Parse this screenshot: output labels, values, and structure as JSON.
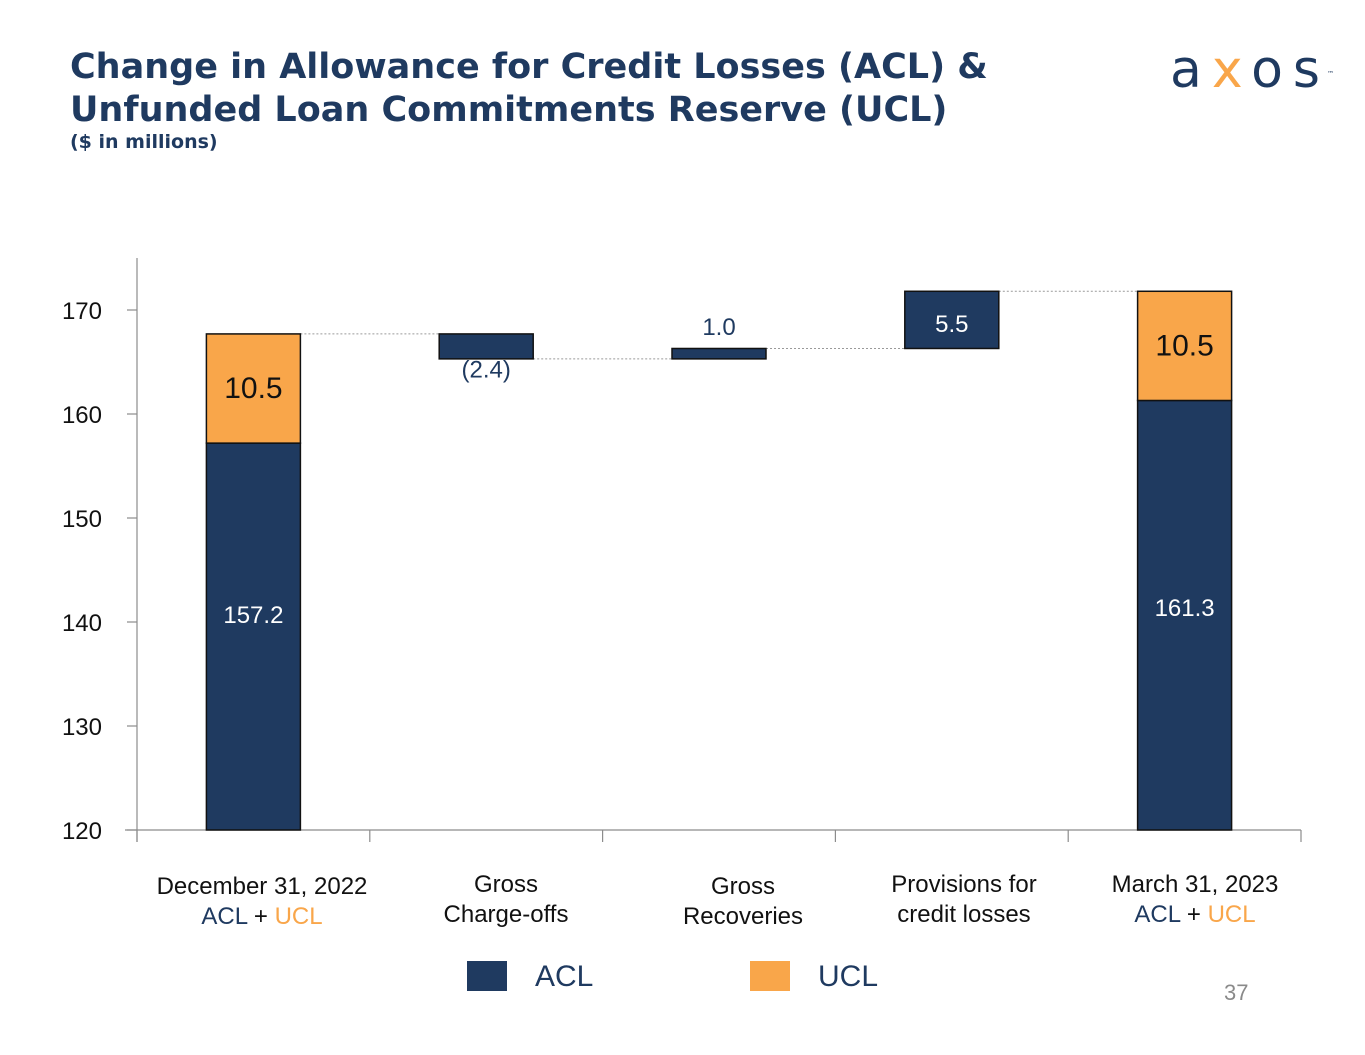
{
  "header": {
    "title_line1": "Change in Allowance for Credit Losses (ACL) &",
    "title_line2": "Unfunded Loan Commitments Reserve (UCL)",
    "subtitle": "($ in millions)"
  },
  "logo": {
    "prefix": "a",
    "x": "x",
    "suffix": "os",
    "tm": "™"
  },
  "chart_data": {
    "type": "bar",
    "subtype": "waterfall",
    "y_ticks": [
      120,
      130,
      140,
      150,
      160,
      170
    ],
    "ylim": [
      120,
      175
    ],
    "categories": [
      {
        "line1": "December 31, 2022",
        "acl": "ACL",
        "plus": " + ",
        "ucl": "UCL"
      },
      {
        "line1": "Gross",
        "line2": "Charge-offs"
      },
      {
        "line1": "Gross",
        "line2": "Recoveries"
      },
      {
        "line1": "Provisions for",
        "line2": "credit losses"
      },
      {
        "line1": "March 31, 2023",
        "acl": "ACL",
        "plus": " + ",
        "ucl": "UCL"
      }
    ],
    "bars": [
      {
        "name": "dec-acl",
        "cat": 0,
        "series": "ACL",
        "base": 120,
        "top": 157.2,
        "label": "157.2",
        "label_pos": "inside",
        "label_y": 140.5
      },
      {
        "name": "dec-ucl",
        "cat": 0,
        "series": "UCL",
        "base": 157.2,
        "top": 167.7,
        "label": "10.5",
        "label_pos": "inside",
        "label_y": 162.3
      },
      {
        "name": "charge-offs",
        "cat": 1,
        "series": "ACL",
        "base": 165.3,
        "top": 167.7,
        "label": "(2.4)",
        "label_pos": "below",
        "label_y": 164.1
      },
      {
        "name": "recoveries",
        "cat": 2,
        "series": "ACL",
        "base": 165.3,
        "top": 166.3,
        "label": "1.0",
        "label_pos": "above",
        "label_y": 168.2
      },
      {
        "name": "provisions",
        "cat": 3,
        "series": "ACL",
        "base": 166.3,
        "top": 171.8,
        "label": "5.5",
        "label_pos": "inside",
        "label_y": 168.5
      },
      {
        "name": "mar-acl",
        "cat": 4,
        "series": "ACL",
        "base": 120,
        "top": 161.3,
        "label": "161.3",
        "label_pos": "inside",
        "label_y": 141.2
      },
      {
        "name": "mar-ucl",
        "cat": 4,
        "series": "UCL",
        "base": 161.3,
        "top": 171.8,
        "label": "10.5",
        "label_pos": "inside",
        "label_y": 166.4
      }
    ],
    "connectors": [
      {
        "from_cat": 0,
        "to_cat": 1,
        "value": 167.7
      },
      {
        "from_cat": 1,
        "to_cat": 2,
        "value": 165.3
      },
      {
        "from_cat": 2,
        "to_cat": 3,
        "value": 166.3
      },
      {
        "from_cat": 3,
        "to_cat": 4,
        "value": 171.8
      }
    ],
    "legend": [
      {
        "name": "ACL",
        "color": "#1f3a60"
      },
      {
        "name": "UCL",
        "color": "#f9a64a"
      }
    ],
    "legend_position": "bottom"
  },
  "colors": {
    "acl": "#1f3a60",
    "ucl": "#f9a64a"
  },
  "footer": {
    "page_number": "37"
  }
}
